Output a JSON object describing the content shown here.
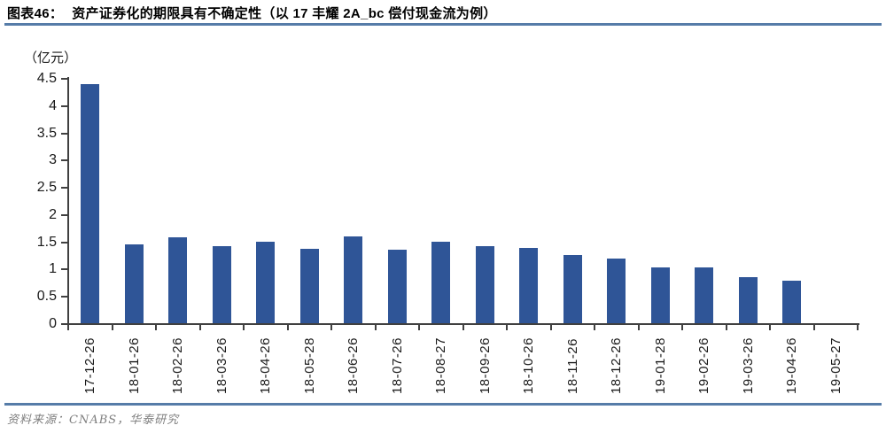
{
  "header": {
    "figure_label": "图表46：",
    "title": "资产证券化的期限具有不确定性（以 17 丰耀 2A_bc 偿付现金流为例）"
  },
  "chart_data": {
    "type": "bar",
    "title": "资产证券化的期限具有不确定性（以 17 丰耀 2A_bc 偿付现金流为例）",
    "unit_label": "（亿元）",
    "xlabel": "",
    "ylabel": "（亿元）",
    "categories": [
      "17-12-26",
      "18-01-26",
      "18-02-26",
      "18-03-26",
      "18-04-26",
      "18-05-28",
      "18-06-26",
      "18-07-26",
      "18-08-27",
      "18-09-26",
      "18-10-26",
      "18-11-26",
      "18-12-26",
      "19-01-28",
      "19-02-26",
      "19-03-26",
      "19-04-26",
      "19-05-27"
    ],
    "values": [
      4.38,
      1.44,
      1.57,
      1.42,
      1.5,
      1.36,
      1.59,
      1.35,
      1.49,
      1.42,
      1.38,
      1.25,
      1.18,
      1.03,
      1.02,
      0.84,
      0.78,
      0
    ],
    "ylim": [
      0,
      4.5
    ],
    "y_tick_values": [
      0,
      0.5,
      1,
      1.5,
      2,
      2.5,
      3,
      3.5,
      4,
      4.5
    ],
    "y_tick_labels": [
      "0",
      "0.5",
      "1",
      "1.5",
      "2",
      "2.5",
      "3",
      "3.5",
      "4",
      "4.5"
    ],
    "grid": false,
    "legend": "none"
  },
  "footer": {
    "source": "资料来源：CNABS，华泰研究"
  },
  "colors": {
    "bar": "#2F5597",
    "rule": "#567CA8",
    "axis": "#404040",
    "footer_text": "#7F7F7F"
  }
}
